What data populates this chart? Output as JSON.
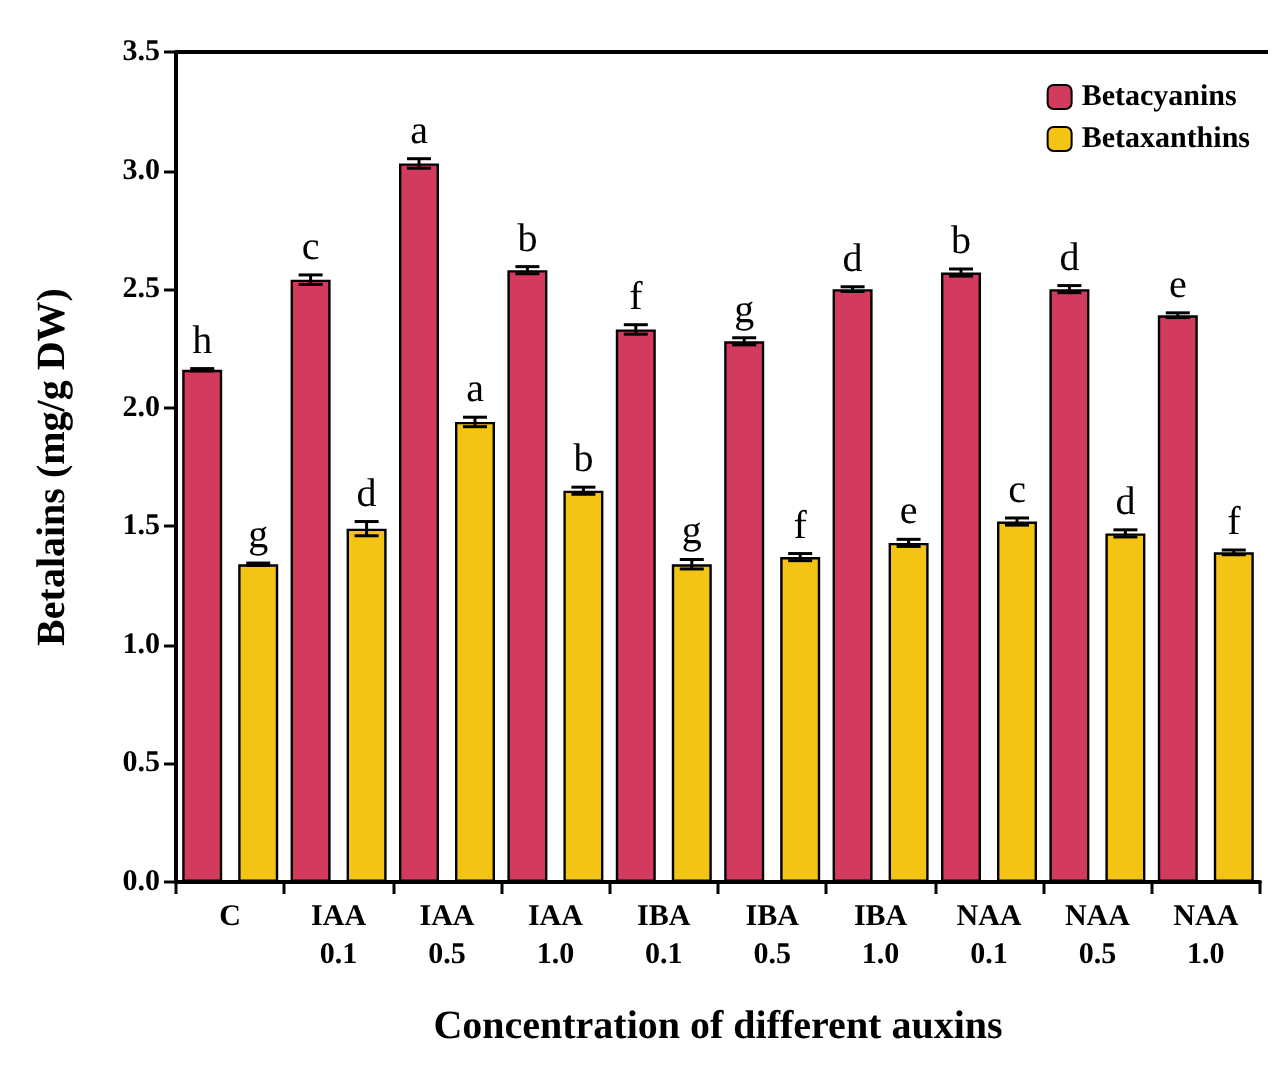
{
  "chart_data": {
    "type": "bar",
    "xlabel": "Concentration of different auxins",
    "ylabel": "Betalains (mg/g DW)",
    "categories": [
      "C",
      "IAA\n0.1",
      "IAA\n0.5",
      "IAA\n1.0",
      "IBA\n0.1",
      "IBA\n0.5",
      "IBA\n1.0",
      "NAA\n0.1",
      "NAA\n0.5",
      "NAA\n1.0"
    ],
    "series": [
      {
        "name": "Betacyanins",
        "color": "#d23a5e",
        "values": [
          2.16,
          2.54,
          3.03,
          2.58,
          2.33,
          2.28,
          2.5,
          2.57,
          2.5,
          2.39
        ],
        "errors": [
          0.005,
          0.02,
          0.02,
          0.015,
          0.02,
          0.015,
          0.01,
          0.015,
          0.015,
          0.01
        ]
      },
      {
        "name": "Betaxanthins",
        "color": "#f4c414",
        "values": [
          1.34,
          1.49,
          1.94,
          1.65,
          1.34,
          1.37,
          1.43,
          1.52,
          1.47,
          1.39
        ],
        "errors": [
          0.005,
          0.03,
          0.02,
          0.015,
          0.02,
          0.015,
          0.015,
          0.015,
          0.015,
          0.01
        ]
      }
    ],
    "annotations": [
      {
        "text": "h",
        "x": "C",
        "y": 2.16
      },
      {
        "text": "g",
        "x": "C",
        "y": 1.34
      },
      {
        "text": "c",
        "x": "IAA\n0.1",
        "y": 2.54
      },
      {
        "text": "d",
        "x": "IAA\n0.1",
        "y": 1.49
      },
      {
        "text": "a",
        "x": "IAA\n0.5",
        "y": 3.03
      },
      {
        "text": "a",
        "x": "IAA\n0.5",
        "y": 1.94
      },
      {
        "text": "b",
        "x": "IAA\n1.0",
        "y": 2.58
      },
      {
        "text": "b",
        "x": "IAA\n1.0",
        "y": 1.65
      },
      {
        "text": "f",
        "x": "IBA\n0.1",
        "y": 2.33
      },
      {
        "text": "g",
        "x": "IBA\n0.1",
        "y": 1.34
      },
      {
        "text": "g",
        "x": "IBA\n0.5",
        "y": 2.28
      },
      {
        "text": "f",
        "x": "IBA\n0.5",
        "y": 1.37
      },
      {
        "text": "d",
        "x": "IBA\n1.0",
        "y": 2.5
      },
      {
        "text": "e",
        "x": "IBA\n1.0",
        "y": 1.43
      },
      {
        "text": "b",
        "x": "NAA\n0.1",
        "y": 2.57
      },
      {
        "text": "c",
        "x": "NAA\n0.1",
        "y": 1.52
      },
      {
        "text": "d",
        "x": "NAA\n0.5",
        "y": 2.5
      },
      {
        "text": "d",
        "x": "NAA\n0.5",
        "y": 1.47
      },
      {
        "text": "e",
        "x": "NAA\n1.0",
        "y": 2.39
      },
      {
        "text": "f",
        "x": "NAA\n1.0",
        "y": 1.39
      }
    ],
    "ylim": [
      0,
      3.5
    ],
    "yticks": [
      {
        "value": 0,
        "label": "0.0"
      },
      {
        "value": 0.5,
        "label": "0.5"
      },
      {
        "value": 1,
        "label": "1.0"
      },
      {
        "value": 1.5,
        "label": "1.5"
      },
      {
        "value": 2,
        "label": "2.0"
      },
      {
        "value": 2.5,
        "label": "2.5"
      },
      {
        "value": 3,
        "label": "3.0"
      },
      {
        "value": 3.5,
        "label": "3.5"
      }
    ],
    "grid": false,
    "legend": "top right"
  }
}
